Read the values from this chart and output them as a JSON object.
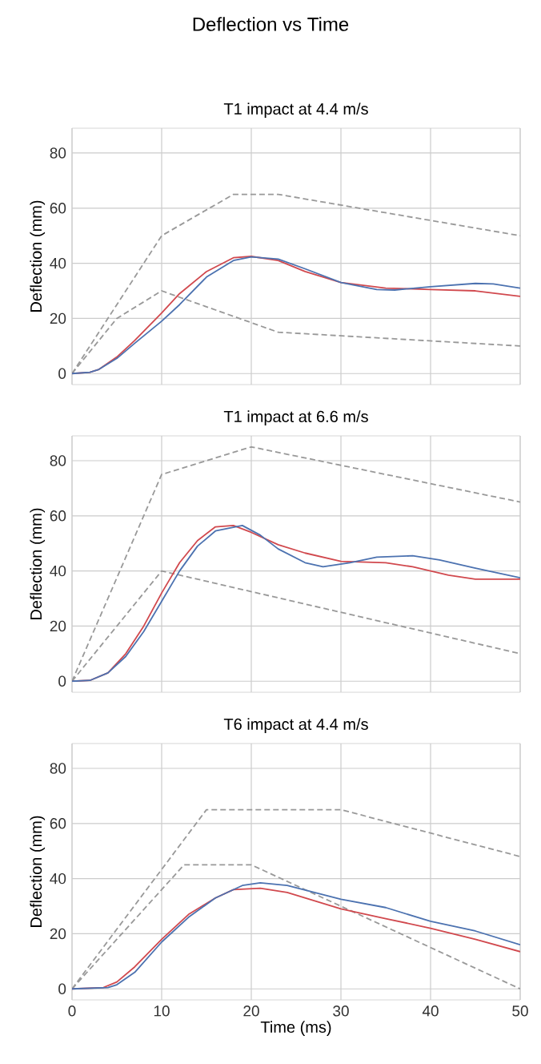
{
  "chart_data": [
    {
      "type": "line",
      "title": "Deflection vs Time",
      "subtitle": "T1 impact at 4.4 m/s",
      "ylabel": "Deflection (mm)",
      "xlim": [
        0,
        50
      ],
      "ylim": [
        -4,
        89
      ],
      "xticks": [
        0,
        10,
        20,
        30,
        40,
        50
      ],
      "yticks": [
        0,
        20,
        40,
        60,
        80
      ],
      "grid": true,
      "tick_labels": "y",
      "series": [
        {
          "color": "#999999",
          "line_style": "dashed",
          "x": [
            0,
            10,
            18,
            23,
            50
          ],
          "values": [
            0,
            50,
            65,
            65,
            50
          ]
        },
        {
          "color": "#999999",
          "line_style": "dashed",
          "x": [
            0,
            5,
            10,
            23,
            50
          ],
          "values": [
            0,
            20,
            30,
            15,
            10
          ]
        },
        {
          "color": "#d1494e",
          "x": [
            0,
            2,
            3,
            5,
            7,
            10,
            12,
            15,
            18,
            20,
            23,
            26,
            30,
            35,
            40,
            45,
            50
          ],
          "values": [
            0,
            0.5,
            1.5,
            6,
            12,
            22,
            29,
            37,
            42,
            42.5,
            41,
            37,
            33,
            31,
            30.5,
            30,
            28
          ]
        },
        {
          "color": "#4c72b0",
          "x": [
            0,
            2,
            3,
            5,
            7,
            10,
            12,
            15,
            18,
            20,
            23,
            26,
            30,
            34,
            36,
            40,
            45,
            47,
            50
          ],
          "values": [
            0,
            0.5,
            1.5,
            5.5,
            11,
            19,
            25,
            35,
            41,
            42.3,
            41.5,
            38,
            33,
            30.5,
            30.3,
            31.5,
            32.7,
            32.5,
            31
          ]
        }
      ]
    },
    {
      "type": "line",
      "subtitle": "T1 impact at 6.6 m/s",
      "ylabel": "Deflection (mm)",
      "xlim": [
        0,
        50
      ],
      "ylim": [
        -4,
        89
      ],
      "xticks": [
        0,
        10,
        20,
        30,
        40,
        50
      ],
      "yticks": [
        0,
        20,
        40,
        60,
        80
      ],
      "grid": true,
      "tick_labels": "y",
      "series": [
        {
          "color": "#999999",
          "line_style": "dashed",
          "x": [
            0,
            10,
            20,
            50
          ],
          "values": [
            0,
            75,
            85,
            65
          ]
        },
        {
          "color": "#999999",
          "line_style": "dashed",
          "x": [
            0,
            10,
            50
          ],
          "values": [
            0,
            40,
            10
          ]
        },
        {
          "color": "#d1494e",
          "x": [
            0,
            2,
            4,
            6,
            8,
            10,
            12,
            14,
            16,
            18,
            20,
            23,
            26,
            30,
            35,
            38,
            42,
            45,
            50
          ],
          "values": [
            0,
            0.3,
            3,
            10,
            20,
            32,
            43,
            51,
            56,
            56.5,
            54,
            49.5,
            46.5,
            43.5,
            43,
            41.5,
            38.5,
            37,
            37
          ]
        },
        {
          "color": "#4c72b0",
          "x": [
            0,
            2,
            4,
            6,
            8,
            10,
            12,
            14,
            16,
            19,
            21,
            23,
            26,
            28,
            31,
            34,
            38,
            41,
            45,
            50
          ],
          "values": [
            0,
            0.3,
            3,
            9,
            18,
            29,
            40,
            49,
            54.5,
            56.5,
            53,
            48,
            43,
            41.5,
            43,
            45,
            45.5,
            44,
            41,
            37.5
          ]
        }
      ]
    },
    {
      "type": "line",
      "subtitle": "T6 impact at 4.4 m/s",
      "xlabel": "Time (ms)",
      "ylabel": "Deflection (mm)",
      "xlim": [
        0,
        50
      ],
      "ylim": [
        -4,
        89
      ],
      "xticks": [
        0,
        10,
        20,
        30,
        40,
        50
      ],
      "yticks": [
        0,
        20,
        40,
        60,
        80
      ],
      "grid": true,
      "series": [
        {
          "color": "#999999",
          "line_style": "dashed",
          "x": [
            0,
            15,
            30,
            50
          ],
          "values": [
            0,
            65,
            65,
            48
          ]
        },
        {
          "color": "#999999",
          "line_style": "dashed",
          "x": [
            0,
            12.5,
            20,
            50
          ],
          "values": [
            0,
            45,
            45,
            0
          ]
        },
        {
          "color": "#d1494e",
          "x": [
            0,
            3.5,
            5,
            7,
            10,
            13,
            16,
            18,
            21,
            24,
            27,
            30,
            35,
            40,
            45,
            50
          ],
          "values": [
            0,
            0.5,
            2.5,
            8,
            18,
            27,
            33,
            36,
            36.5,
            35,
            32,
            29,
            25.5,
            22,
            18,
            13.5
          ]
        },
        {
          "color": "#4c72b0",
          "x": [
            0,
            4,
            5,
            7,
            10,
            13,
            16,
            19,
            21,
            24,
            27,
            30,
            35,
            40,
            45,
            50
          ],
          "values": [
            0,
            0.5,
            1.5,
            6,
            17,
            26,
            33,
            37.5,
            38.5,
            37.5,
            35,
            32.5,
            29.5,
            24.5,
            21,
            16
          ]
        }
      ]
    }
  ]
}
